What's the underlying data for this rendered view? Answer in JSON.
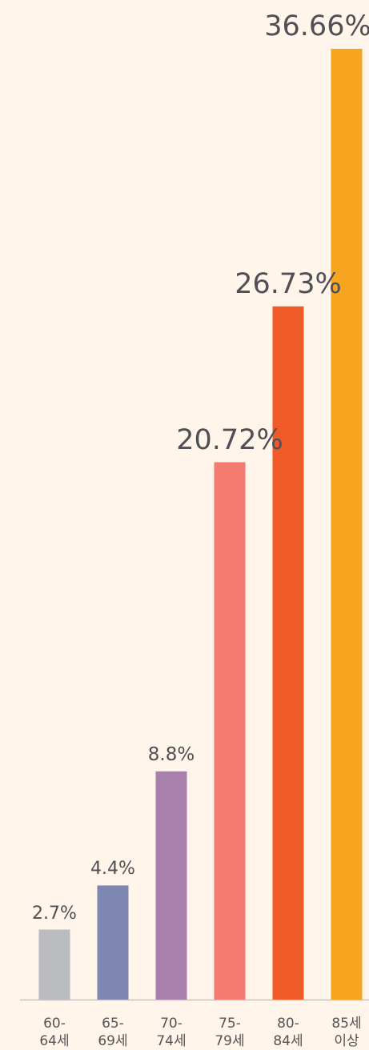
{
  "chart_data": {
    "type": "bar",
    "categories": [
      "60-\n64세",
      "65-\n69세",
      "70-\n74세",
      "75-\n79세",
      "80-\n84세",
      "85세\n이상"
    ],
    "values": [
      2.7,
      4.4,
      8.8,
      20.72,
      26.73,
      36.66
    ],
    "value_labels": [
      "2.7%",
      "4.4%",
      "8.8%",
      "20.72%",
      "26.73%",
      "36.66%"
    ],
    "colors": [
      "#bbbcc0",
      "#7d86b0",
      "#a781ab",
      "#f37b70",
      "#f05a28",
      "#f7a520"
    ],
    "ylim": [
      0,
      36.66
    ]
  }
}
